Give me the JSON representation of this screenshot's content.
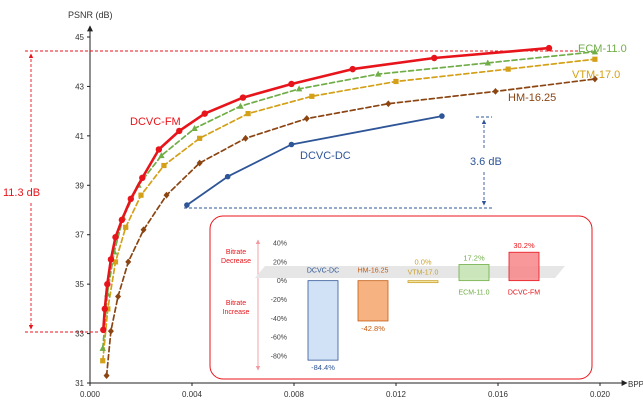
{
  "chart_data": {
    "type": "line",
    "xlabel": "BPP",
    "ylabel": "PSNR (dB)",
    "xlim": [
      0,
      0.02
    ],
    "ylim": [
      31,
      45
    ],
    "x_ticks": [
      "0.000",
      "0.004",
      "0.008",
      "0.012",
      "0.016",
      "0.020"
    ],
    "y_ticks": [
      "31",
      "33",
      "35",
      "37",
      "39",
      "41",
      "43",
      "45"
    ],
    "series": [
      {
        "name": "DCVC-FM",
        "color": "#e8141b",
        "dash": "solid",
        "marker": "circle",
        "x": [
          0.00052,
          0.00058,
          0.00068,
          0.00082,
          0.001,
          0.00125,
          0.0016,
          0.00205,
          0.0027,
          0.0035,
          0.0045,
          0.006,
          0.0079,
          0.0103,
          0.0135,
          0.018
        ],
        "y": [
          33.15,
          34.0,
          35.0,
          36.0,
          36.9,
          37.6,
          38.45,
          39.3,
          40.45,
          41.2,
          41.9,
          42.55,
          43.1,
          43.7,
          44.15,
          44.55
        ]
      },
      {
        "name": "ECM-11.0",
        "color": "#70ad47",
        "dash": "dashed",
        "marker": "triangle",
        "x": [
          0.0005,
          0.00068,
          0.00095,
          0.0013,
          0.0019,
          0.0028,
          0.0041,
          0.0059,
          0.0082,
          0.0113,
          0.0156,
          0.0198
        ],
        "y": [
          32.4,
          34.6,
          36.3,
          37.7,
          39.0,
          40.2,
          41.3,
          42.2,
          42.9,
          43.5,
          43.95,
          44.4
        ]
      },
      {
        "name": "VTM-17.0",
        "color": "#d4a017",
        "dash": "dashed",
        "marker": "square",
        "x": [
          0.0005,
          0.0007,
          0.001,
          0.0014,
          0.002,
          0.0029,
          0.0043,
          0.0062,
          0.0087,
          0.012,
          0.0164,
          0.0198
        ],
        "y": [
          31.9,
          34.0,
          35.9,
          37.3,
          38.6,
          39.8,
          40.9,
          41.9,
          42.6,
          43.2,
          43.7,
          44.1
        ]
      },
      {
        "name": "HM-16.25",
        "color": "#8b4513",
        "dash": "dashed",
        "marker": "diamond",
        "x": [
          0.00065,
          0.00082,
          0.0011,
          0.0015,
          0.0021,
          0.003,
          0.0043,
          0.0061,
          0.0085,
          0.0117,
          0.0159,
          0.0198
        ],
        "y": [
          31.3,
          33.1,
          34.5,
          35.9,
          37.2,
          38.6,
          39.9,
          40.9,
          41.7,
          42.3,
          42.8,
          43.3
        ]
      },
      {
        "name": "DCVC-DC",
        "color": "#2e5597",
        "dash": "solid",
        "marker": "circle",
        "x": [
          0.0038,
          0.0054,
          0.0079,
          0.0138
        ],
        "y": [
          38.2,
          39.35,
          40.65,
          41.8
        ]
      }
    ],
    "annotations": [
      {
        "text": "11.3 dB",
        "color": "#e8141b"
      },
      {
        "text": "3.6 dB",
        "color": "#2e5597"
      }
    ],
    "inset": {
      "type": "bar",
      "ylabel_top": "Bitrate\nDecrease",
      "ylabel_bottom": "Bitrate\nIncrease",
      "ylim": [
        -80,
        40
      ],
      "y_ticks": [
        "40%",
        "20%",
        "0%",
        "-20%",
        "-40%",
        "-60%",
        "-80%"
      ],
      "categories": [
        "DCVC-DC",
        "HM-16.25",
        "VTM-17.0",
        "ECM-11.0",
        "DCVC-FM"
      ],
      "values": [
        -84.4,
        -42.8,
        0.0,
        17.2,
        30.2
      ],
      "value_labels": [
        "-84.4%",
        "-42.8%",
        "0.0%",
        "17.2%",
        "30.2%"
      ],
      "colors": [
        "#2e5597",
        "#c55a11",
        "#c9a227",
        "#70ad47",
        "#e8141b"
      ],
      "fills": [
        "#c9ddf5",
        "#f4a46a",
        "#f3e2a0",
        "#c6e5b1",
        "#f7868a"
      ]
    }
  }
}
